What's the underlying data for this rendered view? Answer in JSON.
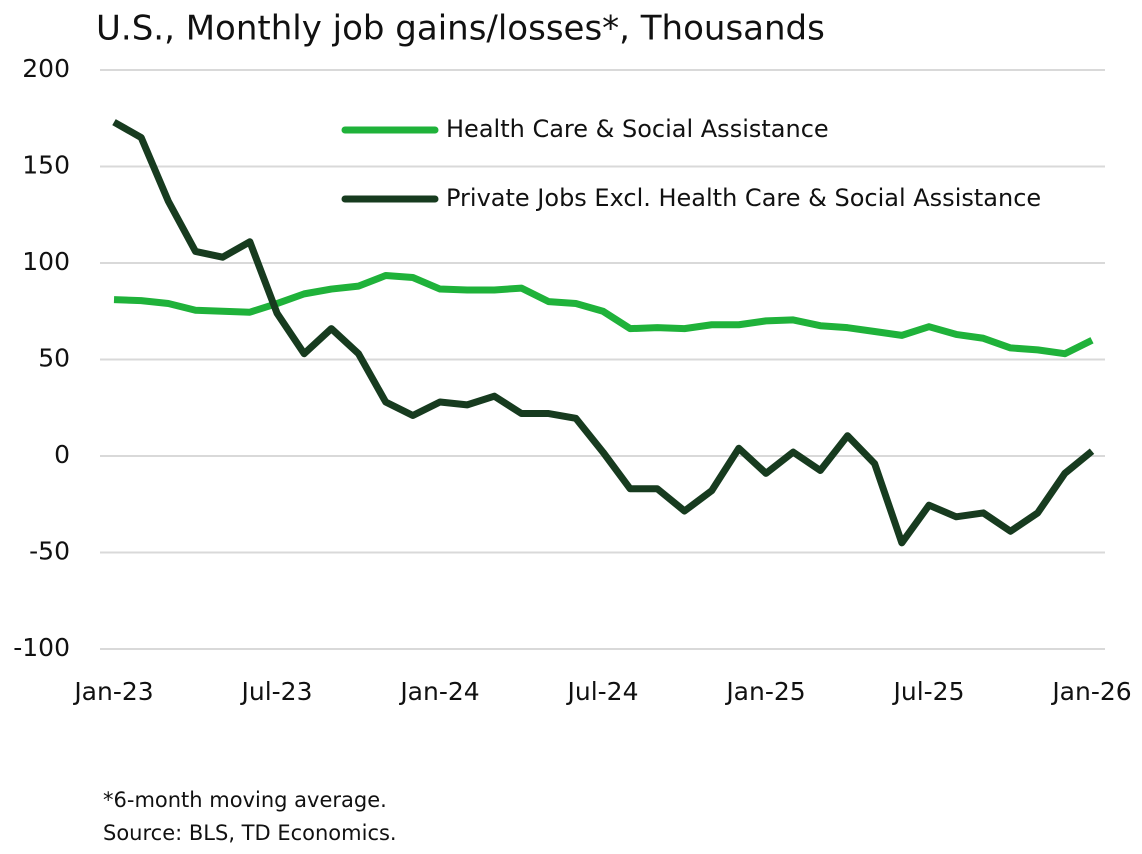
{
  "chart_data": {
    "type": "line",
    "title": "U.S., Monthly job gains/losses*, Thousands",
    "footnotes": [
      "*6-month moving average.",
      "Source: BLS, TD Economics."
    ],
    "categories": [
      "Jan-23",
      null,
      null,
      null,
      null,
      null,
      "Jul-23",
      null,
      null,
      null,
      null,
      null,
      "Jan-24",
      null,
      null,
      null,
      null,
      null,
      "Jul-24",
      null,
      null,
      null,
      null,
      null,
      "Jan-25",
      null,
      null,
      null,
      null,
      null,
      "Jul-25",
      null,
      null,
      null,
      null,
      null,
      "Jan-26"
    ],
    "series": [
      {
        "name": "Health Care & Social Assistance",
        "color": "#1fb23a",
        "values": [
          81,
          80.5,
          79,
          75.5,
          75,
          74.5,
          79,
          84,
          86.5,
          88,
          93.5,
          92.5,
          86.5,
          86,
          86,
          87,
          80,
          79,
          75,
          66,
          66.5,
          66,
          68,
          68,
          70,
          70.5,
          67.5,
          66.5,
          64.5,
          62.5,
          67,
          63,
          61,
          56,
          55,
          53,
          60
        ]
      },
      {
        "name": "Private Jobs Excl. Health Care & Social Assistance",
        "color": "#173b1f",
        "values": [
          173,
          165,
          132,
          106,
          103,
          111,
          74,
          53,
          66,
          53,
          28,
          21,
          28,
          26.5,
          31,
          22,
          22,
          19.5,
          2,
          -17,
          -17,
          -28.5,
          -18,
          4,
          -9,
          2,
          -7.5,
          10.5,
          -4,
          -45,
          -25.5,
          -31.5,
          -29.5,
          -39,
          -29.5,
          -9,
          2.5
        ]
      }
    ],
    "ylim": [
      -100,
      200
    ],
    "yticks": [
      -100,
      -50,
      0,
      50,
      100,
      150,
      200
    ],
    "grid": true
  }
}
